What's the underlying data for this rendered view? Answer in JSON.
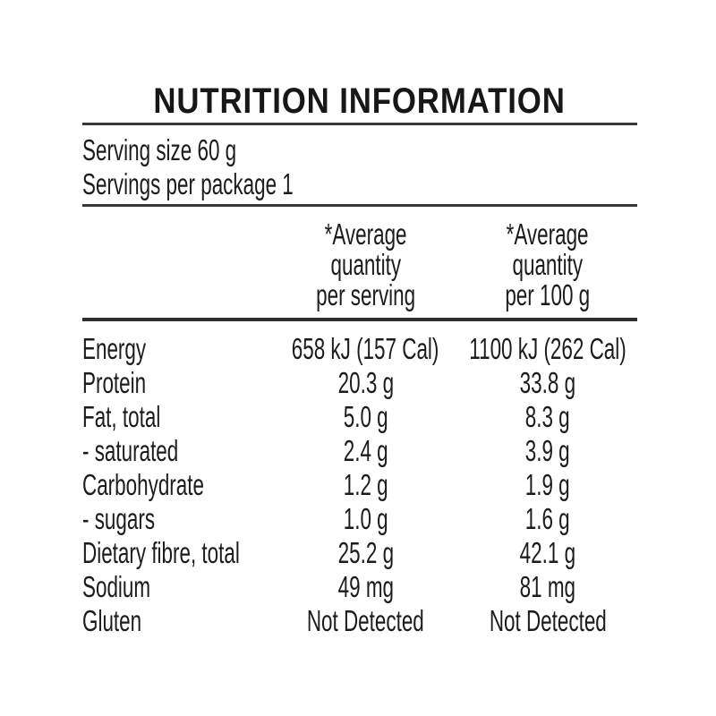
{
  "colors": {
    "background": "#ffffff",
    "text": "#1c1c1c",
    "rule_thin": "#383838",
    "rule_thick": "#2e2e2e"
  },
  "title": "NUTRITION INFORMATION",
  "serving_info": {
    "serving_size": "Serving size 60 g",
    "servings_per_package": "Servings per package 1"
  },
  "table": {
    "column_headers": [
      {
        "lines": [
          "*Average",
          "quantity",
          "per serving"
        ]
      },
      {
        "lines": [
          "*Average",
          "quantity",
          "per 100 g"
        ]
      }
    ],
    "rows": [
      {
        "label": "Energy",
        "per_serving": "658 kJ (157 Cal)",
        "per_100g": "1100 kJ (262 Cal)"
      },
      {
        "label": "Protein",
        "per_serving": "20.3 g",
        "per_100g": "33.8 g"
      },
      {
        "label": "Fat, total",
        "per_serving": "5.0 g",
        "per_100g": "8.3 g"
      },
      {
        "label": "- saturated",
        "per_serving": "2.4 g",
        "per_100g": "3.9 g"
      },
      {
        "label": "Carbohydrate",
        "per_serving": "1.2 g",
        "per_100g": "1.9 g"
      },
      {
        "label": "- sugars",
        "per_serving": "1.0 g",
        "per_100g": "1.6 g"
      },
      {
        "label": "Dietary fibre, total",
        "per_serving": "25.2 g",
        "per_100g": "42.1 g"
      },
      {
        "label": "Sodium",
        "per_serving": "49 mg",
        "per_100g": "81 mg"
      },
      {
        "label": "Gluten",
        "per_serving": "Not Detected",
        "per_100g": "Not Detected"
      }
    ]
  }
}
